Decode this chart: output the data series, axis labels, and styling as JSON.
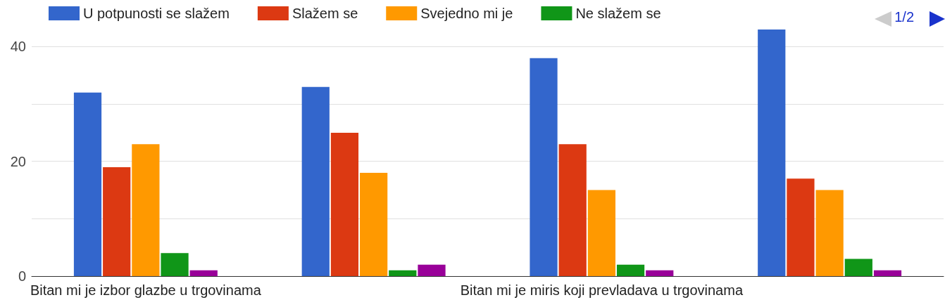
{
  "chart_data": {
    "type": "bar",
    "categories": [
      "Bitan mi je izbor glazbe u trgovinama",
      null,
      "Bitan mi je miris koji prevladava u trgovinama",
      null
    ],
    "series": [
      {
        "name": "U potpunosti se slažem",
        "color": "#3366cc",
        "values": [
          32,
          33,
          38,
          43
        ]
      },
      {
        "name": "Slažem se",
        "color": "#dc3912",
        "values": [
          19,
          25,
          23,
          17
        ]
      },
      {
        "name": "Svejedno mi je",
        "color": "#ff9900",
        "values": [
          23,
          18,
          15,
          15
        ]
      },
      {
        "name": "Ne slažem se",
        "color": "#109618",
        "values": [
          4,
          1,
          2,
          3
        ]
      },
      {
        "color": "#990099",
        "values": [
          1,
          2,
          1,
          1
        ]
      }
    ],
    "ylim": [
      0,
      43
    ],
    "yticks": [
      0,
      {
        "value": 10,
        "label": null
      },
      20,
      {
        "value": 30,
        "label": null
      },
      40
    ],
    "grid": true,
    "legend": "top",
    "annotations": [
      "1/2"
    ]
  }
}
